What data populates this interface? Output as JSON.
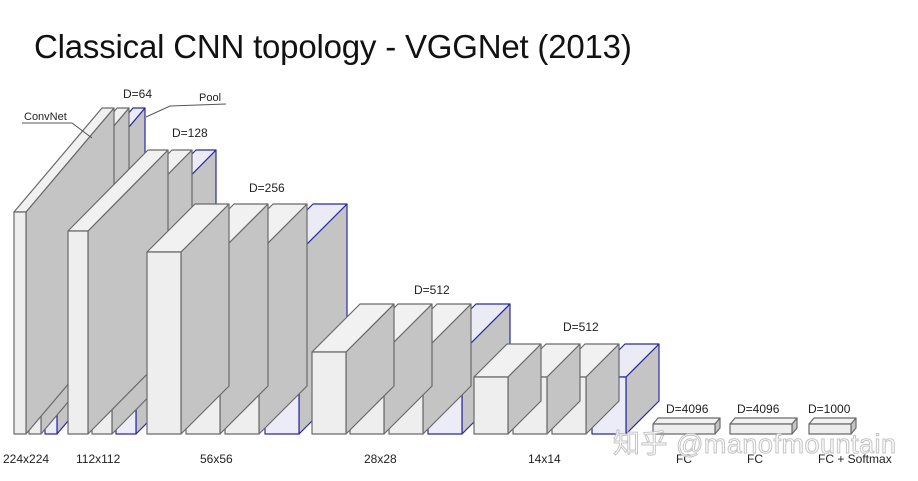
{
  "title": "Classical CNN topology - VGGNet (2013)",
  "annotations": {
    "convnet": "ConvNet",
    "pool": "Pool"
  },
  "colors": {
    "conv_face": "#eeeeee",
    "conv_edge": "#6a6a6a",
    "pool_face": "#ececf8",
    "pool_edge": "#2a2aa0",
    "side_face": "#c4c4c4",
    "top_face": "#f1f1f1"
  },
  "stages": [
    {
      "size_label": "224x224",
      "depth_label": "D=64",
      "conv_layers": 2,
      "pool": true
    },
    {
      "size_label": "112x112",
      "depth_label": "D=128",
      "conv_layers": 2,
      "pool": true
    },
    {
      "size_label": "56x56",
      "depth_label": "D=256",
      "conv_layers": 3,
      "pool": true
    },
    {
      "size_label": "28x28",
      "depth_label": "D=512",
      "conv_layers": 3,
      "pool": true
    },
    {
      "size_label": "14x14",
      "depth_label": "D=512",
      "conv_layers": 3,
      "pool": true
    }
  ],
  "fc_layers": [
    {
      "depth_label": "D=4096",
      "label": "FC"
    },
    {
      "depth_label": "D=4096",
      "label": "FC"
    },
    {
      "depth_label": "D=1000",
      "label": "FC + Softmax"
    }
  ],
  "watermark": "知乎 @manofmountain"
}
